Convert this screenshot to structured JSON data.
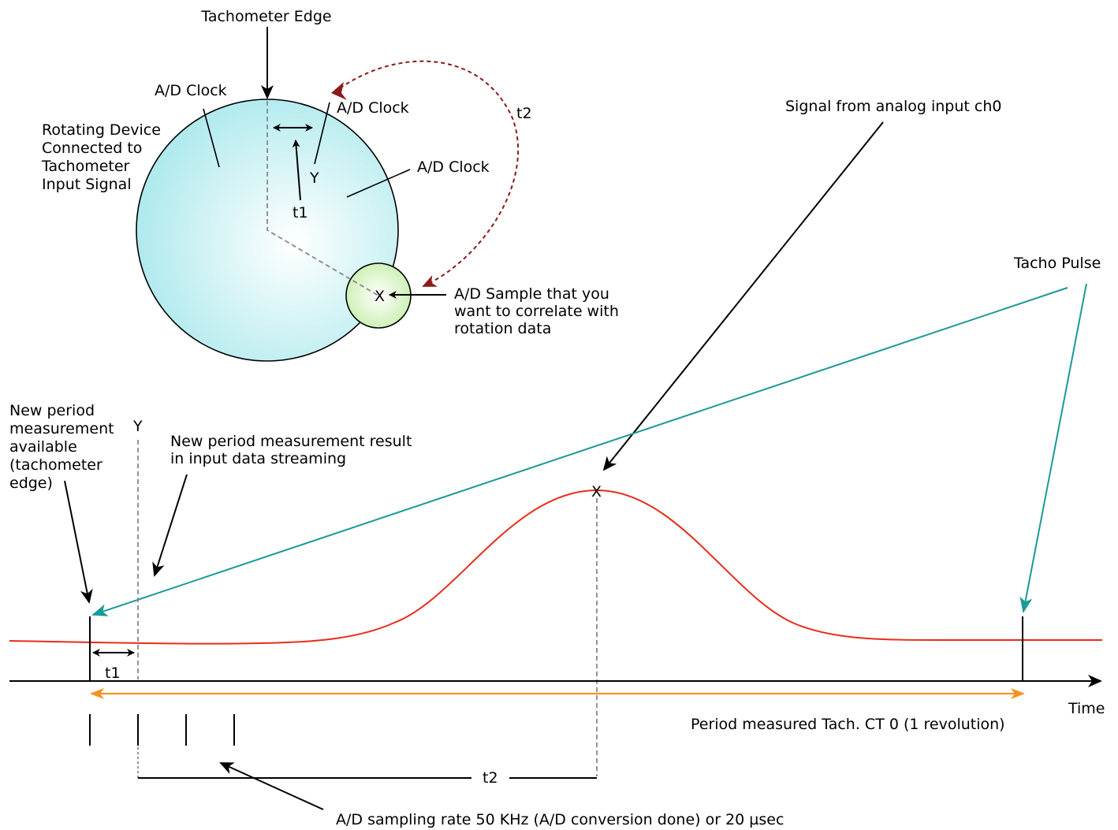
{
  "labels": {
    "tachometer_edge": "Tachometer Edge",
    "ad_clock_left": "A/D Clock",
    "ad_clock_top_right": "A/D Clock",
    "ad_clock_right": "A/D Clock",
    "rotating_device": [
      "Rotating Device",
      "Connected to",
      "Tachometer",
      "Input Signal"
    ],
    "y_wheel": "Y",
    "t1_wheel": "t1",
    "t2_wheel": "t2",
    "x_wheel": "X",
    "ad_sample": [
      "A/D Sample that you",
      "want to correlate with",
      "rotation data"
    ],
    "signal_ch0": "Signal from analog input ch0",
    "tacho_pulse": "Tacho Pulse",
    "new_period_available": [
      "New period",
      "measurement",
      "available",
      "(tachometer",
      "edge)"
    ],
    "y_timeline": "Y",
    "new_period_result": [
      "New period measurement result",
      "in input data streaming"
    ],
    "x_timeline": "X",
    "t1_timeline": "t1",
    "time_axis": "Time",
    "period_measured": "Period measured Tach. CT 0 (1 revolution)",
    "t2_timeline": "t2",
    "sampling_rate": "A/D sampling rate 50 KHz (A/D conversion done) or 20 µsec"
  },
  "colors": {
    "wheel_fill": "#a8e8ec",
    "wheel_center": "#ffffff",
    "sample_fill": "#cdf0b4",
    "signal": "#e82c1a",
    "tacho_arrow": "#1a9a96",
    "t2_arrow": "#8b1a1a",
    "period_arrow": "#f7931e",
    "dashed": "#888888"
  }
}
